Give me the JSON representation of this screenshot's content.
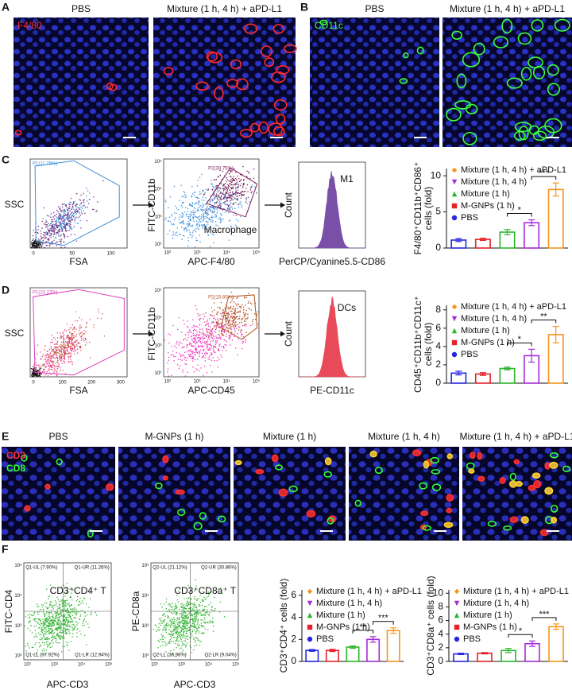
{
  "figure": {
    "flow_log_ticks": [
      "10²",
      "10³",
      "10⁴",
      "10⁵"
    ],
    "panel_A": {
      "letter": "A",
      "titles": [
        "PBS",
        "Mixture (1 h, 4 h) + aPD-L1"
      ],
      "stain": "F4/80"
    },
    "panel_B": {
      "letter": "B",
      "titles": [
        "PBS",
        "Mixture (1 h, 4 h) + aPD-L1"
      ],
      "stain": "CD11c"
    },
    "panel_C": {
      "letter": "C",
      "gate_plot": {
        "y_label": "SSC",
        "x_label": "FSA",
        "gate": "P1(11.75%)",
        "x_ticks": [
          0,
          50,
          100
        ]
      },
      "marker_plot": {
        "y_label": "FITC-CD11b",
        "x_label": "APC-F4/80",
        "gate": "P2(30.75%)",
        "population": "Macrophage"
      },
      "histogram": {
        "y_label": "Count",
        "x_label": "PerCP/Cyanine5.5-CD86",
        "marker": "M1"
      },
      "chart": {
        "type": "bar",
        "categories": [
          "PBS",
          "M-GNPs (1 h)",
          "Mixture (1 h)",
          "Mixture (1 h, 4 h)",
          "Mixture (1 h, 4 h) + aPD-L1"
        ],
        "colors": [
          "#2626e0",
          "#e8202a",
          "#2bb52b",
          "#a52ad8",
          "#f7941d"
        ],
        "markers": [
          "circle",
          "square",
          "triangle",
          "triangle-down",
          "diamond"
        ],
        "values": [
          1.1,
          1.2,
          2.2,
          3.5,
          8.1
        ],
        "errors": [
          0.2,
          0.15,
          0.35,
          0.4,
          0.9
        ],
        "ylim": [
          0,
          11
        ],
        "yticks": [
          0,
          5,
          10
        ],
        "y_label": [
          "F4/80⁺CD11b⁺CD86⁺",
          "cells (fold)"
        ],
        "significance": [
          "*",
          "***"
        ]
      }
    },
    "panel_D": {
      "letter": "D",
      "gate_plot": {
        "y_label": "SSC",
        "x_label": "FSA",
        "gate": "P1(20.23%)",
        "x_ticks": [
          0,
          100,
          200,
          300
        ]
      },
      "marker_plot": {
        "y_label": "FITC-CD11b",
        "x_label": "APC-CD45",
        "gate": "P2(15.60%)"
      },
      "histogram": {
        "y_label": "Count",
        "x_label": "PE-CD11c",
        "marker": "DCs"
      },
      "chart": {
        "type": "bar",
        "categories": [
          "PBS",
          "M-GNPs (1 h)",
          "Mixture (1 h)",
          "Mixture (1 h, 4 h)",
          "Mixture (1 h, 4 h) + aPD-L1"
        ],
        "colors": [
          "#2626e0",
          "#e8202a",
          "#2bb52b",
          "#a52ad8",
          "#f7941d"
        ],
        "markers": [
          "circle",
          "square",
          "triangle",
          "triangle-down",
          "diamond"
        ],
        "values": [
          1.1,
          1.0,
          1.6,
          3.0,
          5.3
        ],
        "errors": [
          0.2,
          0.15,
          0.15,
          0.7,
          0.9
        ],
        "ylim": [
          0,
          8.5
        ],
        "yticks": [
          0,
          2,
          4,
          6,
          8
        ],
        "y_label": [
          "CD45⁺CD11b⁺CD11c⁺",
          "cells (fold)"
        ],
        "significance": [
          "*",
          "**"
        ]
      }
    },
    "panel_E": {
      "letter": "E",
      "titles": [
        "PBS",
        "M-GNPs (1 h)",
        "Mixture (1 h)",
        "Mixture (1 h, 4 h)",
        "Mixture (1 h, 4 h) + aPD-L1"
      ],
      "stains": [
        "CD3",
        "CD8"
      ]
    },
    "panel_F": {
      "letter": "F",
      "flow_plots": [
        {
          "y_label": "FITC-CD4",
          "x_label": "APC-CD3",
          "population": "CD3⁺CD4⁺ T",
          "quadrants": [
            "Q1-UL (7.90%)",
            "Q1-UR (11.26%)",
            "Q1-LL (67.92%)",
            "Q1-LR (12.94%)"
          ]
        },
        {
          "y_label": "PE-CD8a",
          "x_label": "APC-CD3",
          "population": "CD3⁺CD8a⁺ T",
          "quadrants": [
            "Q2-UL (21.12%)",
            "Q2-UR (30.86%)",
            "Q2-LL (38.98%)",
            "Q2-LR (9.04%)"
          ]
        }
      ],
      "charts": [
        {
          "type": "bar",
          "categories": [
            "PBS",
            "M-GNPs (1 h)",
            "Mixture (1 h)",
            "Mixture (1 h, 4 h)",
            "Mixture (1 h, 4 h) + aPD-L1"
          ],
          "colors": [
            "#2626e0",
            "#e8202a",
            "#2bb52b",
            "#a52ad8",
            "#f7941d"
          ],
          "markers": [
            "circle",
            "square",
            "triangle",
            "triangle-down",
            "diamond"
          ],
          "values": [
            1.0,
            1.0,
            1.3,
            2.0,
            2.8
          ],
          "errors": [
            0.08,
            0.1,
            0.1,
            0.25,
            0.25
          ],
          "ylim": [
            0,
            6.5
          ],
          "yticks": [
            0,
            2,
            4,
            6
          ],
          "y_label": [
            "CD3⁺CD4⁺ cells (fold)"
          ],
          "significance": [
            "**",
            "***"
          ]
        },
        {
          "type": "bar",
          "categories": [
            "PBS",
            "M-GNPs (1 h)",
            "Mixture (1 h)",
            "Mixture (1 h, 4 h)",
            "Mixture (1 h, 4 h) + aPD-L1"
          ],
          "colors": [
            "#2626e0",
            "#e8202a",
            "#2bb52b",
            "#a52ad8",
            "#f7941d"
          ],
          "markers": [
            "circle",
            "square",
            "triangle",
            "triangle-down",
            "diamond"
          ],
          "values": [
            1.1,
            1.2,
            1.6,
            2.6,
            5.1
          ],
          "errors": [
            0.1,
            0.1,
            0.3,
            0.4,
            0.4
          ],
          "ylim": [
            0,
            10.5
          ],
          "yticks": [
            0,
            2,
            4,
            6,
            8,
            10
          ],
          "y_label": [
            "CD3⁺CD8a⁺ cells (fold)"
          ],
          "significance": [
            "*",
            "***"
          ]
        }
      ]
    }
  }
}
